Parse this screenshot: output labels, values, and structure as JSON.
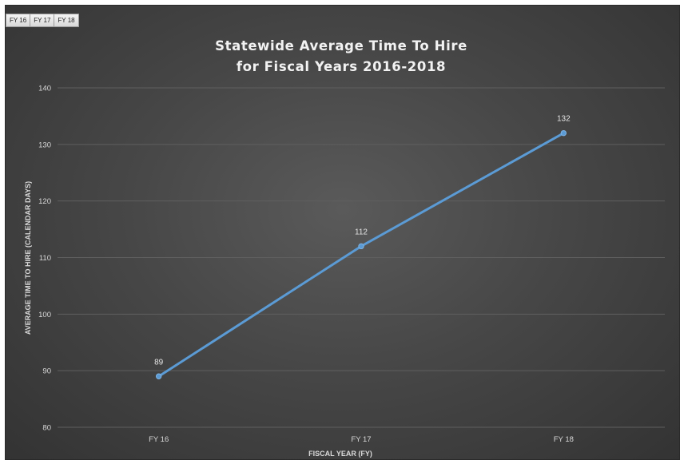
{
  "filters": [
    "FY 16",
    "FY 17",
    "FY 18"
  ],
  "chart_data": {
    "type": "line",
    "title_lines": [
      "Statewide Average Time To Hire",
      "for Fiscal Years 2016-2018"
    ],
    "xlabel": "FISCAL YEAR (FY)",
    "ylabel": "AVERAGE TIME TO HIRE (CALENDAR DAYS)",
    "categories": [
      "FY 16",
      "FY 17",
      "FY 18"
    ],
    "series": [
      {
        "values": [
          89,
          112,
          132
        ]
      }
    ],
    "data_labels": [
      "89",
      "112",
      "132"
    ],
    "ylim": [
      80,
      140
    ],
    "yticks": [
      80,
      90,
      100,
      110,
      120,
      130,
      140
    ],
    "grid": true,
    "line_color": "#5b9bd5",
    "gridline_color": "#5f5f5f",
    "background_color": "#444444"
  }
}
